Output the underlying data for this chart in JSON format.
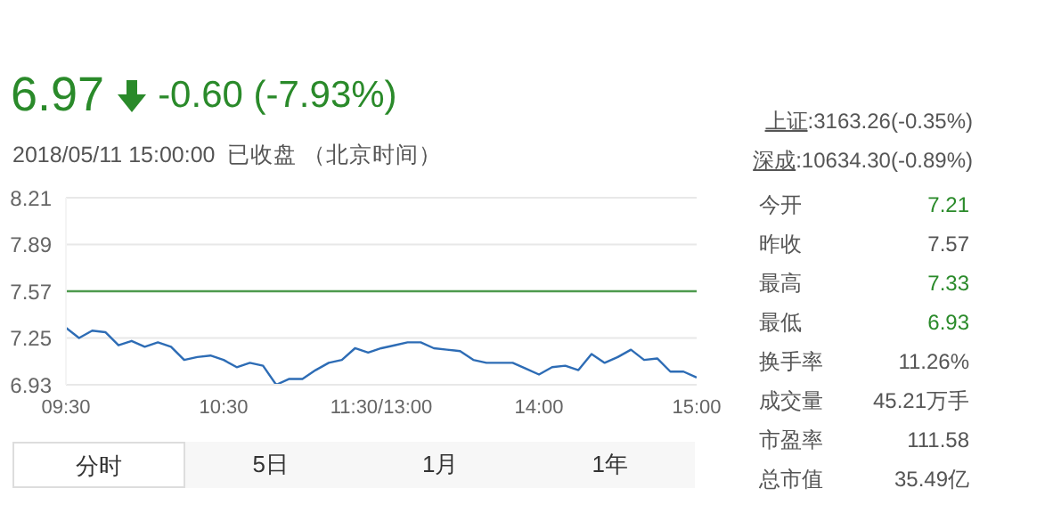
{
  "chart_data": {
    "type": "line",
    "title": "6.97",
    "subtitle": "2018/05/11 15:00:00  已收盘 （北京时间）",
    "annotations": [
      "-0.60 (-7.93%)",
      "上证",
      ":3163.26(-0.35%)",
      "深成",
      ":10634.30(-0.89%)",
      "今开",
      "7.21",
      "昨收",
      "7.57",
      "最高",
      "7.33",
      "最低",
      "6.93",
      "换手率",
      "11.26%",
      "成交量",
      "45.21万手",
      "市盈率",
      "111.58",
      "总市值",
      "35.49亿",
      "分时",
      "5日",
      "1月",
      "1年"
    ],
    "categories": [
      "09:30",
      null,
      null,
      null,
      null,
      null,
      null,
      null,
      null,
      null,
      null,
      null,
      "10:30",
      null,
      null,
      null,
      null,
      null,
      null,
      null,
      null,
      null,
      null,
      null,
      "11:30/13:00",
      null,
      null,
      null,
      null,
      null,
      null,
      null,
      null,
      null,
      null,
      null,
      "14:00",
      null,
      null,
      null,
      null,
      null,
      null,
      null,
      null,
      null,
      null,
      null,
      "15:00"
    ],
    "series": [
      {
        "color": "#2d6cb5",
        "values": [
          7.32,
          7.25,
          7.3,
          7.29,
          7.2,
          7.23,
          7.19,
          7.22,
          7.19,
          7.1,
          7.12,
          7.13,
          7.1,
          7.05,
          7.08,
          7.06,
          6.93,
          6.97,
          6.97,
          7.03,
          7.08,
          7.1,
          7.18,
          7.15,
          7.18,
          7.2,
          7.22,
          7.22,
          7.18,
          7.17,
          7.16,
          7.1,
          7.08,
          7.08,
          7.08,
          7.04,
          7.0,
          7.05,
          7.06,
          7.03,
          7.14,
          7.08,
          7.12,
          7.17,
          7.1,
          7.11,
          7.02,
          7.02,
          6.98
        ]
      }
    ],
    "ylim": [
      6.93,
      8.21
    ],
    "yticks": [
      6.93,
      7.25,
      7.57,
      7.89,
      8.21
    ],
    "ref_lines": [
      {
        "axis": "y",
        "value": 7.57,
        "color": "#4e9a4e"
      }
    ],
    "grid": "y",
    "marker": "none",
    "line_style": "solid"
  }
}
